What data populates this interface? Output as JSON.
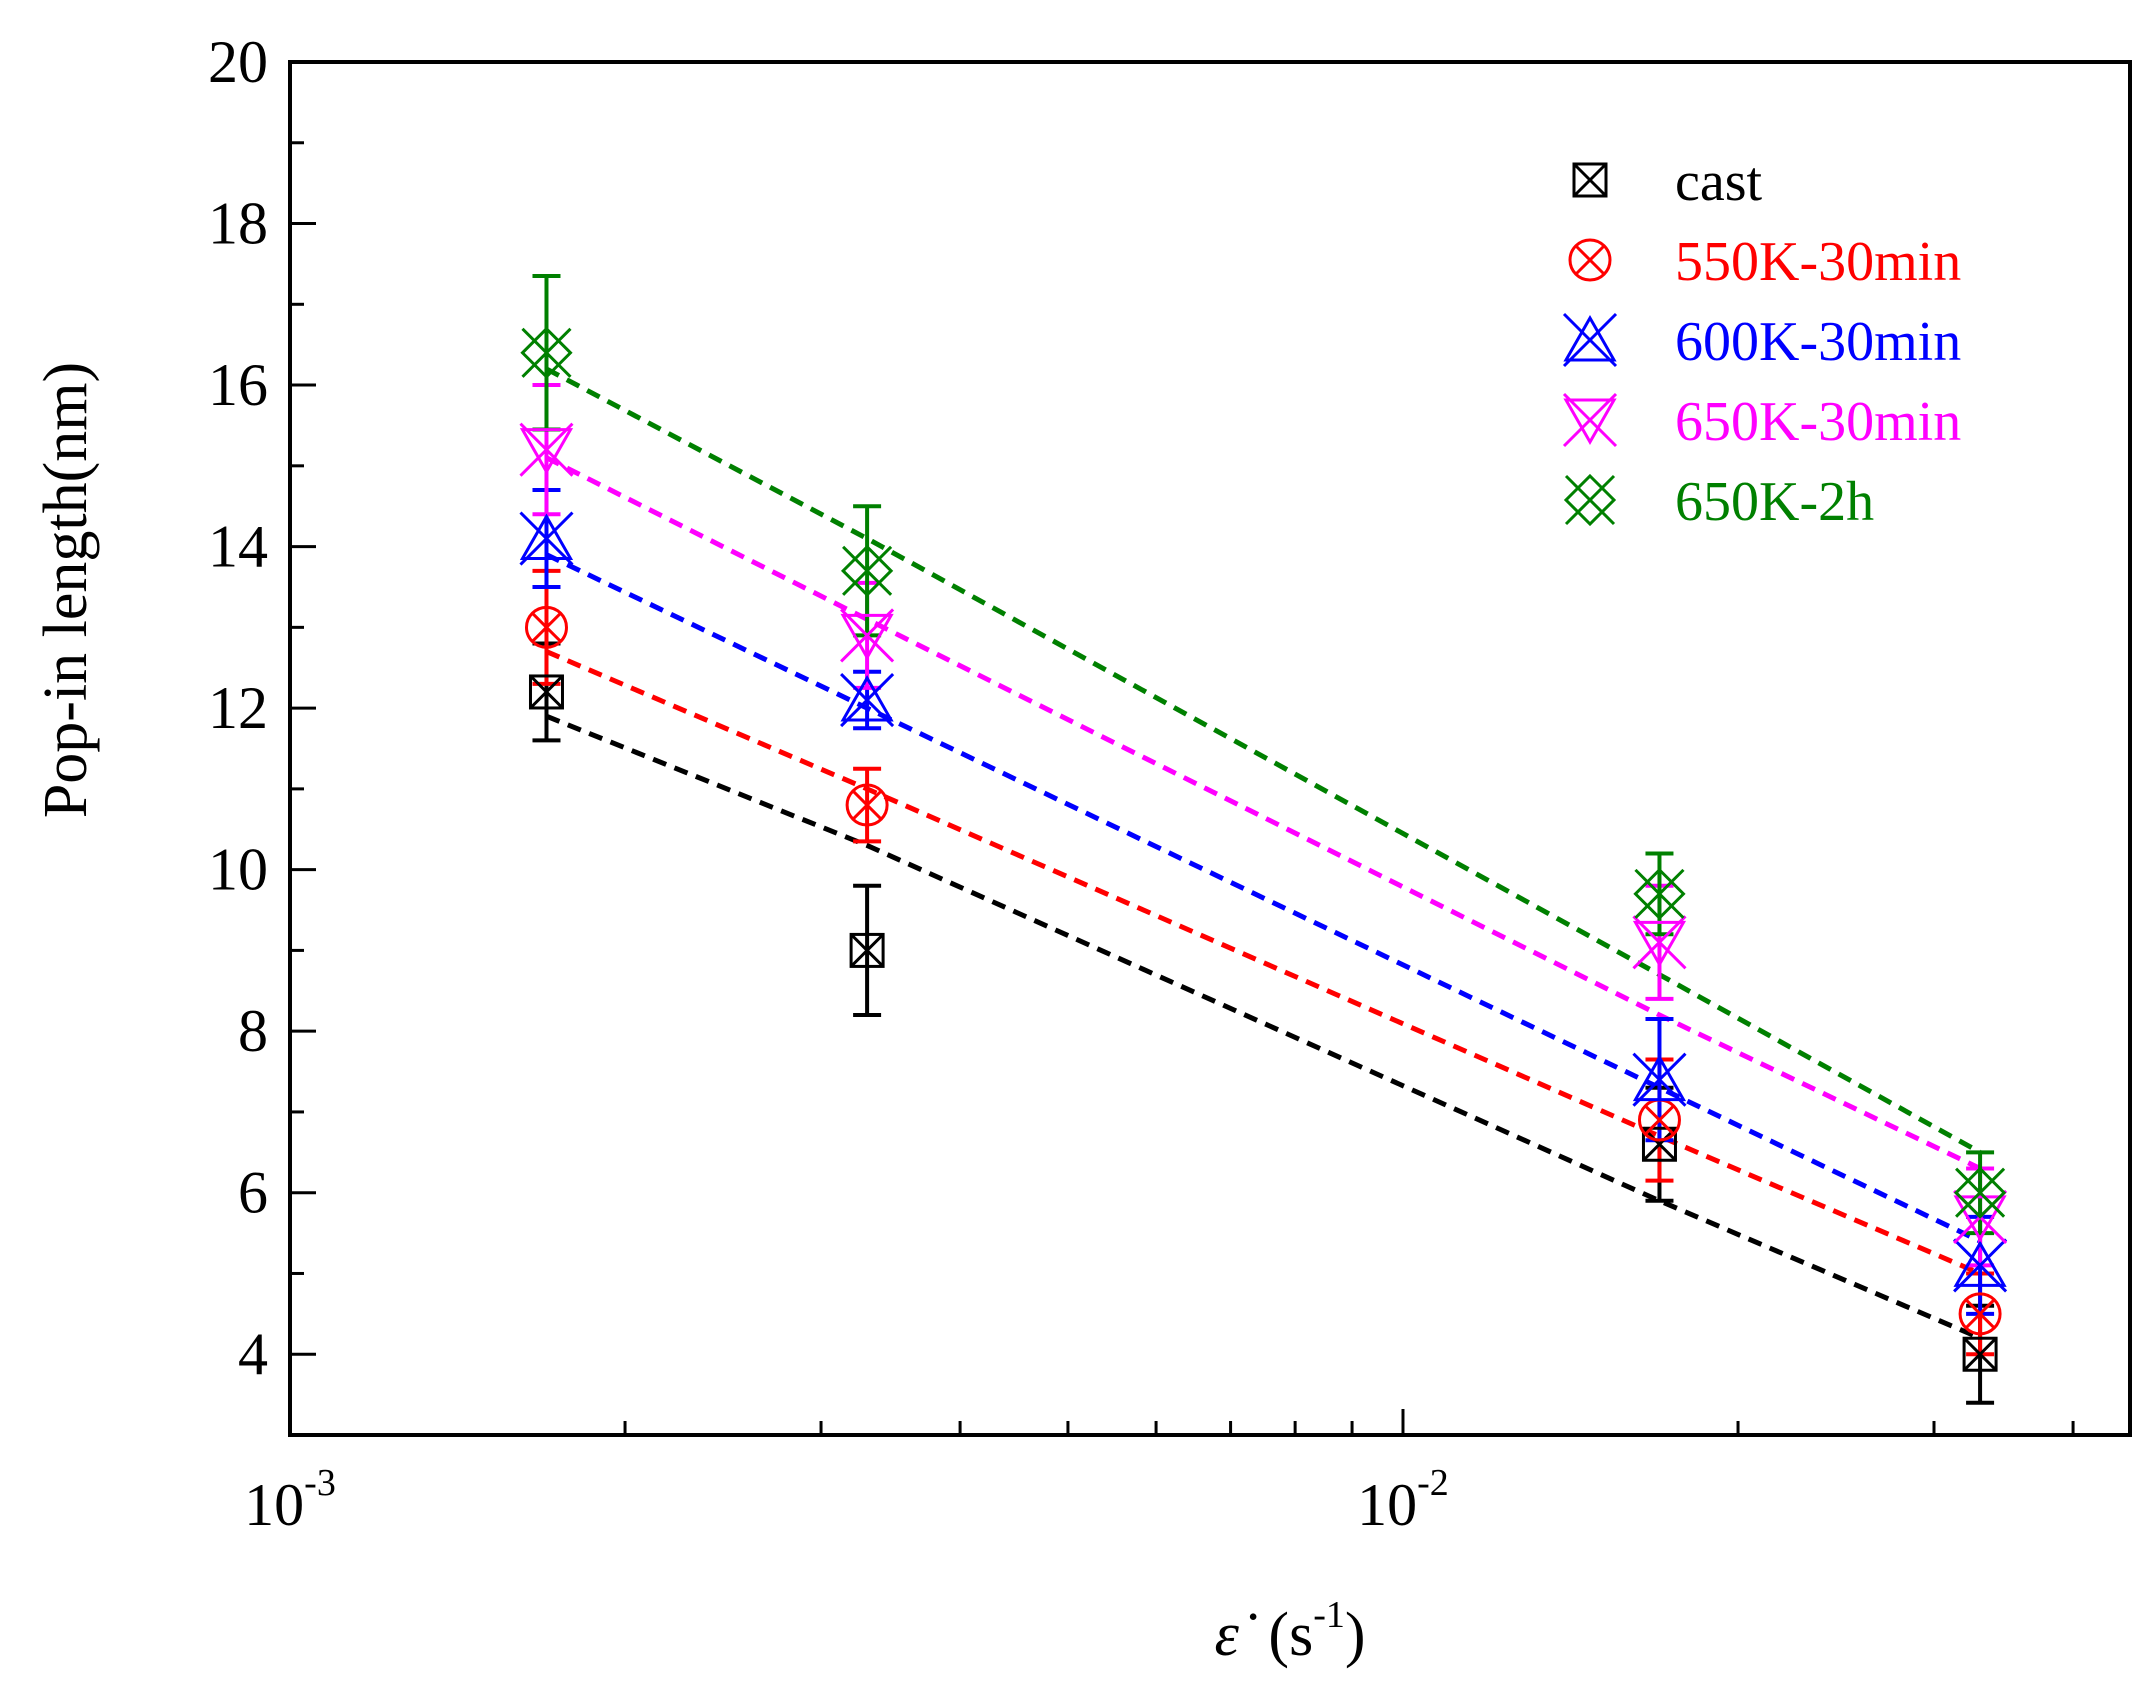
{
  "chart_data": {
    "type": "scatter",
    "title": "",
    "xlabel": "ε̇ (s⁻¹)",
    "xlabel_parts": {
      "symbol": "ε̇",
      "open": "(s",
      "exponent": "-1",
      "close": ")"
    },
    "ylabel": "Pop-in length(nm)",
    "xscale": "log",
    "xlim": [
      0.001,
      0.045
    ],
    "ylim": [
      3,
      20
    ],
    "yticks": [
      "4",
      "6",
      "8",
      "10",
      "12",
      "14",
      "16",
      "18",
      "20"
    ],
    "xticks": [
      {
        "value": 0.001,
        "base": "10",
        "exp": "-3"
      },
      {
        "value": 0.01,
        "base": "10",
        "exp": "-2"
      }
    ],
    "legend_position": "top-right",
    "x": [
      0.0017,
      0.0033,
      0.017,
      0.033
    ],
    "series": [
      {
        "name": "cast",
        "color": "#000000",
        "marker": "boxed-x",
        "values": [
          12.2,
          9.0,
          6.6,
          4.0
        ],
        "errors": [
          0.6,
          0.8,
          0.7,
          0.6
        ],
        "fit": [
          11.9,
          10.3,
          5.9,
          4.2
        ]
      },
      {
        "name": "550K-30min",
        "color": "#ff0000",
        "marker": "circle-x",
        "values": [
          13.0,
          10.8,
          6.9,
          4.5
        ],
        "errors": [
          0.7,
          0.45,
          0.75,
          0.5
        ],
        "fit": [
          12.7,
          11.0,
          6.7,
          5.0
        ]
      },
      {
        "name": "600K-30min",
        "color": "#0000ff",
        "marker": "double-x",
        "values": [
          14.1,
          12.1,
          7.4,
          5.1
        ],
        "errors": [
          0.6,
          0.35,
          0.75,
          0.6
        ],
        "fit": [
          13.9,
          12.0,
          7.3,
          5.4
        ]
      },
      {
        "name": "650K-30min",
        "color": "#ff00ff",
        "marker": "hourglass-x",
        "values": [
          15.2,
          12.9,
          9.1,
          5.7
        ],
        "errors": [
          0.8,
          0.65,
          0.7,
          0.6
        ],
        "fit": [
          15.1,
          13.1,
          8.2,
          6.3
        ]
      },
      {
        "name": "650K-2h",
        "color": "#008000",
        "marker": "diamond-x",
        "values": [
          16.4,
          13.7,
          9.7,
          6.0
        ],
        "errors": [
          0.95,
          0.8,
          0.5,
          0.5
        ],
        "fit": [
          16.2,
          14.1,
          8.7,
          6.5
        ]
      }
    ]
  }
}
